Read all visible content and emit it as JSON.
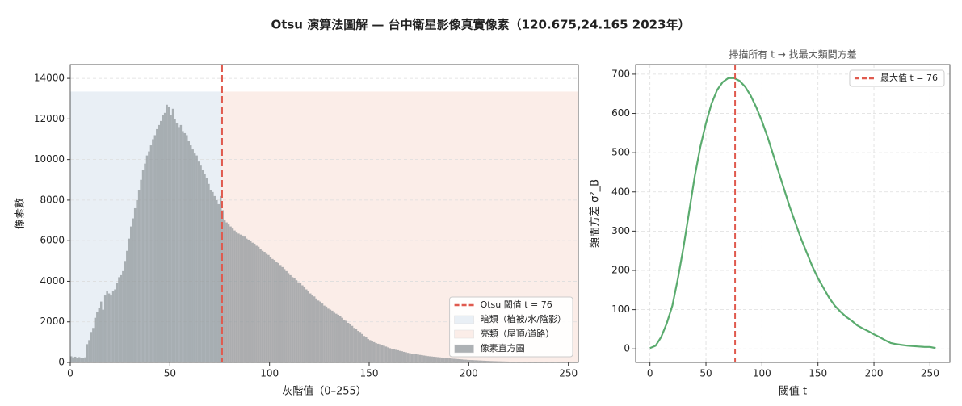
{
  "title": "Otsu 演算法圖解 — 台中衛星影像真實像素（120.675,24.165 2023年）",
  "chart_data": [
    {
      "type": "histogram",
      "xlabel": "灰階值（0–255）",
      "ylabel": "像素數",
      "name": "像素直方圖",
      "color": "#8e9499",
      "bins": [
        0,
        1,
        2,
        3,
        4,
        5,
        6,
        7,
        8,
        9,
        10,
        11,
        12,
        13,
        14,
        15,
        16,
        17,
        18,
        19,
        20,
        21,
        22,
        23,
        24,
        25,
        26,
        27,
        28,
        29,
        30,
        31,
        32,
        33,
        34,
        35,
        36,
        37,
        38,
        39,
        40,
        41,
        42,
        43,
        44,
        45,
        46,
        47,
        48,
        49,
        50,
        51,
        52,
        53,
        54,
        55,
        56,
        57,
        58,
        59,
        60,
        61,
        62,
        63,
        64,
        65,
        66,
        67,
        68,
        69,
        70,
        71,
        72,
        73,
        74,
        75,
        76,
        77,
        78,
        79,
        80,
        81,
        82,
        83,
        84,
        85,
        86,
        87,
        88,
        89,
        90,
        91,
        92,
        93,
        94,
        95,
        96,
        97,
        98,
        99,
        100,
        101,
        102,
        103,
        104,
        105,
        106,
        107,
        108,
        109,
        110,
        111,
        112,
        113,
        114,
        115,
        116,
        117,
        118,
        119,
        120,
        121,
        122,
        123,
        124,
        125,
        126,
        127,
        128,
        129,
        130,
        131,
        132,
        133,
        134,
        135,
        136,
        137,
        138,
        139,
        140,
        141,
        142,
        143,
        144,
        145,
        146,
        147,
        148,
        149,
        150,
        151,
        152,
        153,
        154,
        155,
        156,
        157,
        158,
        159,
        160,
        161,
        162,
        163,
        164,
        165,
        166,
        167,
        168,
        169,
        170,
        171,
        172,
        173,
        174,
        175,
        176,
        177,
        178,
        179,
        180,
        181,
        182,
        183,
        184,
        185,
        186,
        187,
        188,
        189,
        190,
        191,
        192,
        193,
        194,
        195,
        196,
        197,
        198,
        199,
        200,
        201,
        202,
        203,
        204,
        205,
        206,
        207,
        208,
        209,
        210,
        211,
        212,
        213,
        214,
        215,
        216,
        217,
        218,
        219,
        220,
        221,
        222,
        223,
        224,
        225,
        226,
        227,
        228,
        229,
        230,
        231,
        232,
        233,
        234,
        235,
        236,
        237,
        238,
        239,
        240,
        241,
        242,
        243,
        244,
        245,
        246,
        247,
        248,
        249,
        250,
        251,
        252,
        253,
        254,
        255,
        256
      ],
      "values": [
        300,
        250,
        280,
        200,
        260,
        230,
        210,
        250,
        900,
        1100,
        1500,
        1700,
        2200,
        2500,
        2700,
        3000,
        2600,
        3300,
        3500,
        3400,
        3300,
        3500,
        3600,
        3900,
        4200,
        4300,
        4500,
        5000,
        5500,
        6100,
        6700,
        7100,
        7600,
        8000,
        8500,
        9000,
        9500,
        9800,
        10200,
        10400,
        10700,
        11000,
        11200,
        11500,
        11700,
        11900,
        12200,
        12300,
        12700,
        12600,
        12200,
        12500,
        12000,
        11800,
        11600,
        11700,
        11400,
        11300,
        11200,
        10900,
        10700,
        10500,
        10300,
        10200,
        9900,
        9700,
        9500,
        9300,
        9100,
        8800,
        8500,
        8400,
        8200,
        8000,
        7800,
        8200,
        7500,
        7000,
        6900,
        6800,
        6700,
        6600,
        6500,
        6400,
        6350,
        6300,
        6250,
        6200,
        6100,
        6050,
        6000,
        5900,
        5850,
        5750,
        5700,
        5600,
        5500,
        5450,
        5350,
        5300,
        5200,
        5100,
        5050,
        4950,
        4900,
        4800,
        4700,
        4600,
        4500,
        4400,
        4300,
        4200,
        4150,
        4050,
        3950,
        3900,
        3800,
        3700,
        3600,
        3500,
        3400,
        3300,
        3250,
        3150,
        3050,
        3000,
        2900,
        2800,
        2750,
        2650,
        2600,
        2550,
        2450,
        2400,
        2350,
        2300,
        2200,
        2100,
        2050,
        1950,
        1900,
        1800,
        1700,
        1650,
        1550,
        1500,
        1400,
        1300,
        1250,
        1150,
        1100,
        1050,
        1000,
        950,
        920,
        900,
        860,
        820,
        780,
        740,
        700,
        670,
        650,
        620,
        600,
        570,
        550,
        520,
        500,
        470,
        450,
        430,
        420,
        400,
        390,
        370,
        360,
        340,
        330,
        310,
        300,
        290,
        280,
        270,
        260,
        250,
        240,
        230,
        220,
        210,
        200,
        190,
        180,
        175,
        165,
        160,
        150,
        140,
        135,
        125,
        120,
        115,
        110,
        105,
        100,
        95,
        90,
        85,
        80,
        75,
        70,
        67,
        64,
        61,
        58,
        55,
        52,
        49,
        46,
        43,
        40,
        38,
        36,
        34,
        32,
        30,
        28,
        26,
        24,
        22,
        20,
        19,
        18,
        17,
        16,
        15,
        14,
        13,
        12,
        10,
        8,
        8,
        7,
        7,
        6,
        6,
        5,
        5,
        4,
        4,
        3,
        3,
        2,
        2,
        1,
        1
      ],
      "threshold": 76,
      "threshold_label": "Otsu 閾值 t = 76",
      "threshold_color": "#e05a4e",
      "regions": [
        {
          "name": "暗類（植被/水/陰影）",
          "color": "#e9eff5"
        },
        {
          "name": "亮類（屋頂/道路）",
          "color": "#fbede8"
        }
      ],
      "shade_top": 13350,
      "xlim": [
        0,
        255
      ],
      "ylim": [
        0,
        14680
      ],
      "xticks": [
        0,
        50,
        100,
        150,
        200,
        250
      ],
      "yticks": [
        0,
        2000,
        4000,
        6000,
        8000,
        10000,
        12000,
        14000
      ],
      "grid": "y",
      "legend": "lower right"
    },
    {
      "type": "line",
      "title": "掃描所有 t → 找最大類間方差",
      "xlabel": "閾值 t",
      "ylabel": "類間方差 σ²_B",
      "color": "#5aab6e",
      "x": [
        0,
        5,
        10,
        15,
        20,
        25,
        30,
        35,
        40,
        45,
        50,
        55,
        60,
        65,
        70,
        75,
        80,
        85,
        90,
        95,
        100,
        105,
        110,
        115,
        120,
        125,
        130,
        135,
        140,
        145,
        150,
        155,
        160,
        165,
        170,
        175,
        180,
        185,
        190,
        195,
        200,
        205,
        210,
        215,
        220,
        225,
        230,
        235,
        240,
        245,
        250,
        255
      ],
      "values": [
        2,
        8,
        30,
        65,
        110,
        180,
        260,
        350,
        440,
        515,
        575,
        625,
        660,
        680,
        690,
        690,
        683,
        668,
        645,
        615,
        580,
        540,
        495,
        450,
        405,
        360,
        320,
        280,
        245,
        210,
        180,
        155,
        130,
        110,
        95,
        82,
        72,
        60,
        52,
        45,
        37,
        30,
        22,
        15,
        12,
        10,
        8,
        7,
        6,
        5,
        5,
        2
      ],
      "threshold": 76,
      "threshold_label": "最大值 t = 76",
      "threshold_color": "#e05a4e",
      "xlim": [
        -12.75,
        267.75
      ],
      "ylim": [
        -34.5,
        724.5
      ],
      "xticks": [
        0,
        50,
        100,
        150,
        200,
        250
      ],
      "yticks": [
        0,
        100,
        200,
        300,
        400,
        500,
        600,
        700
      ],
      "grid": "both",
      "legend": "upper right"
    }
  ]
}
